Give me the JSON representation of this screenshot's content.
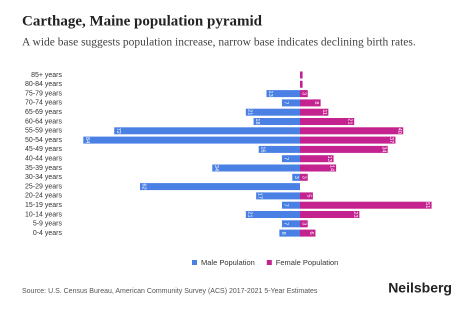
{
  "chart_data": {
    "type": "population-pyramid",
    "title": "Carthage, Maine population pyramid",
    "subtitle": "A wide base suggests population increase, narrow base indicates declining birth rates.",
    "categories": [
      "85+ years",
      "80-84 years",
      "75-79 years",
      "70-74 years",
      "65-69 years",
      "60-64 years",
      "55-59 years",
      "50-54 years",
      "45-49 years",
      "40-44 years",
      "35-39 years",
      "30-34 years",
      "25-29 years",
      "20-24 years",
      "15-19 years",
      "10-14 years",
      "5-9 years",
      "0-4 years"
    ],
    "series": [
      {
        "name": "Male Population",
        "color": "#4a80e3",
        "values": [
          0,
          0,
          13,
          7,
          21,
          18,
          72,
          84,
          16,
          7,
          34,
          3,
          62,
          17,
          7,
          21,
          7,
          8
        ]
      },
      {
        "name": "Female Population",
        "color": "#c3228f",
        "values": [
          1,
          1,
          3,
          8,
          11,
          21,
          40,
          37,
          34,
          13,
          14,
          3,
          0,
          5,
          51,
          23,
          3,
          6
        ]
      }
    ],
    "source": "Source: U.S. Census Bureau, American Community Survey (ACS) 2017-2021 5-Year Estimates",
    "brand": "Neilsberg"
  }
}
